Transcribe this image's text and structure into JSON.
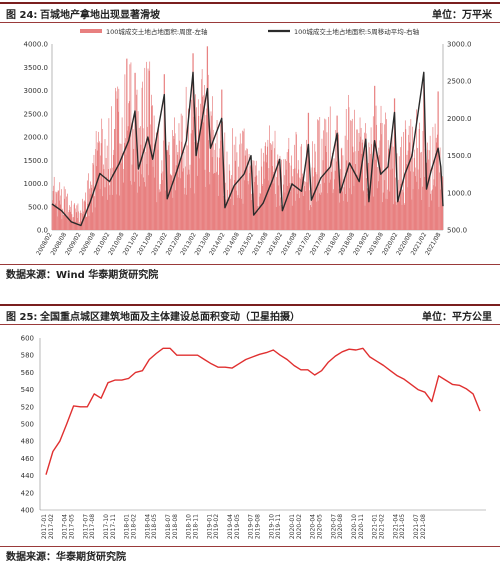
{
  "figure1": {
    "number": "图 24:",
    "title": "百城地产拿地出现显著滑坡",
    "unit": "单位：万平米",
    "source": "数据来源：Wind   华泰期货研究院"
  },
  "figure2": {
    "number": "图 25:",
    "title": "全国重点城区建筑地面及主体建设总面积变动（卫星拍摄）",
    "unit": "单位：平方公里",
    "source": "数据来源：华泰期货研究院"
  },
  "colors": {
    "bars": "#e88080",
    "line1": "#2a2a2a",
    "line2": "#e03030",
    "rule": "#7a1f1f"
  },
  "chart_data": [
    {
      "type": "bar",
      "legend_placement": "top",
      "grid": false,
      "series": [
        {
          "name": "100城成交土地占地面积:周度-左轴",
          "kind": "bar",
          "axis": "left",
          "anchors": [
            [
              "2008-02-01",
              950
            ],
            [
              "2008-06-01",
              650
            ],
            [
              "2008-10-01",
              420
            ],
            [
              "2009-02-01",
              350
            ],
            [
              "2009-06-01",
              900
            ],
            [
              "2009-10-01",
              1700
            ],
            [
              "2010-02-01",
              1600
            ],
            [
              "2010-06-01",
              2100
            ],
            [
              "2010-10-01",
              2300
            ],
            [
              "2011-02-01",
              2100
            ],
            [
              "2011-06-01",
              2500
            ],
            [
              "2011-10-01",
              1500
            ],
            [
              "2012-02-01",
              1100
            ],
            [
              "2012-06-01",
              1600
            ],
            [
              "2012-10-01",
              2000
            ],
            [
              "2013-02-01",
              2100
            ],
            [
              "2013-06-01",
              2300
            ],
            [
              "2013-10-01",
              1800
            ],
            [
              "2014-02-01",
              1400
            ],
            [
              "2014-06-01",
              1400
            ],
            [
              "2014-10-01",
              1500
            ],
            [
              "2015-02-01",
              900
            ],
            [
              "2015-06-01",
              1200
            ],
            [
              "2015-10-01",
              1500
            ],
            [
              "2016-02-01",
              900
            ],
            [
              "2016-06-01",
              1400
            ],
            [
              "2016-10-01",
              1300
            ],
            [
              "2017-02-01",
              1200
            ],
            [
              "2017-06-01",
              1600
            ],
            [
              "2017-10-01",
              1700
            ],
            [
              "2018-02-01",
              1500
            ],
            [
              "2018-06-01",
              1800
            ],
            [
              "2018-10-01",
              1500
            ],
            [
              "2019-02-01",
              1400
            ],
            [
              "2019-06-01",
              1700
            ],
            [
              "2019-10-01",
              1500
            ],
            [
              "2020-02-01",
              1000
            ],
            [
              "2020-06-01",
              1600
            ],
            [
              "2020-10-01",
              1800
            ],
            [
              "2021-02-01",
              1200
            ],
            [
              "2021-06-01",
              1500
            ],
            [
              "2021-08-15",
              1000
            ]
          ],
          "peaks": [
            [
              "2010-12-20",
              3380
            ],
            [
              "2011-12-26",
              3350
            ],
            [
              "2012-12-24",
              3800
            ],
            [
              "2013-06-24",
              3950
            ],
            [
              "2013-12-23",
              3020
            ],
            [
              "2016-12-26",
              2520
            ],
            [
              "2017-12-25",
              2460
            ],
            [
              "2019-04-15",
              3100
            ],
            [
              "2019-12-23",
              2830
            ],
            [
              "2020-12-28",
              3180
            ],
            [
              "2021-06-28",
              2980
            ]
          ]
        },
        {
          "name": "100城成交土地占地面积:5周移动平均-右轴",
          "kind": "line",
          "axis": "right",
          "points": [
            [
              "2008-02-01",
              850
            ],
            [
              "2008-06-01",
              760
            ],
            [
              "2008-10-01",
              610
            ],
            [
              "2009-02-01",
              560
            ],
            [
              "2009-06-01",
              880
            ],
            [
              "2009-10-01",
              1260
            ],
            [
              "2010-02-01",
              1150
            ],
            [
              "2010-06-01",
              1390
            ],
            [
              "2010-10-01",
              1700
            ],
            [
              "2010-12-20",
              2100
            ],
            [
              "2011-02-01",
              1320
            ],
            [
              "2011-06-01",
              1750
            ],
            [
              "2011-08-01",
              1450
            ],
            [
              "2011-12-26",
              2320
            ],
            [
              "2012-02-01",
              920
            ],
            [
              "2012-06-01",
              1290
            ],
            [
              "2012-10-01",
              1700
            ],
            [
              "2012-12-24",
              2620
            ],
            [
              "2013-02-01",
              1500
            ],
            [
              "2013-06-24",
              2400
            ],
            [
              "2013-08-01",
              1600
            ],
            [
              "2013-12-23",
              2000
            ],
            [
              "2014-02-01",
              800
            ],
            [
              "2014-06-01",
              1100
            ],
            [
              "2014-10-01",
              1250
            ],
            [
              "2014-12-29",
              1500
            ],
            [
              "2015-02-01",
              700
            ],
            [
              "2015-06-01",
              860
            ],
            [
              "2015-10-01",
              1180
            ],
            [
              "2015-12-28",
              1450
            ],
            [
              "2016-02-01",
              760
            ],
            [
              "2016-06-01",
              1120
            ],
            [
              "2016-10-01",
              1020
            ],
            [
              "2016-12-26",
              1650
            ],
            [
              "2017-02-01",
              900
            ],
            [
              "2017-06-01",
              1200
            ],
            [
              "2017-10-01",
              1350
            ],
            [
              "2017-12-25",
              1800
            ],
            [
              "2018-02-01",
              1000
            ],
            [
              "2018-06-01",
              1400
            ],
            [
              "2018-10-01",
              1150
            ],
            [
              "2018-12-24",
              1720
            ],
            [
              "2019-02-01",
              880
            ],
            [
              "2019-04-15",
              1700
            ],
            [
              "2019-07-01",
              1250
            ],
            [
              "2019-10-01",
              1350
            ],
            [
              "2019-12-23",
              2080
            ],
            [
              "2020-02-01",
              880
            ],
            [
              "2020-05-01",
              1250
            ],
            [
              "2020-08-01",
              1500
            ],
            [
              "2020-12-28",
              2620
            ],
            [
              "2021-02-01",
              1050
            ],
            [
              "2021-04-01",
              1300
            ],
            [
              "2021-06-28",
              1600
            ],
            [
              "2021-08-01",
              1350
            ],
            [
              "2021-08-29",
              820
            ]
          ]
        }
      ],
      "x_tick_labels": [
        "2008/02",
        "2008/08",
        "2009/02",
        "2009/08",
        "2010/02",
        "2010/08",
        "2011/02",
        "2011/08",
        "2012/02",
        "2012/08",
        "2013/02",
        "2013/08",
        "2014/02",
        "2014/08",
        "2015/02",
        "2015/08",
        "2016/02",
        "2016/08",
        "2017/02",
        "2017/08",
        "2018/02",
        "2018/08",
        "2019/02",
        "2019/08",
        "2020/02",
        "2020/08",
        "2021/02",
        "2021/08"
      ],
      "y_left": {
        "min": 0,
        "max": 4000,
        "ticks": [
          "0.0",
          "500.0",
          "1000.0",
          "1500.0",
          "2000.0",
          "2500.0",
          "3000.0",
          "3500.0",
          "4000.0"
        ]
      },
      "y_right": {
        "min": 500,
        "max": 3000,
        "ticks": [
          "500.0",
          "1000.0",
          "1500.0",
          "2000.0",
          "2500.0",
          "3000.0"
        ]
      }
    },
    {
      "type": "line",
      "grid": false,
      "series": [
        {
          "name": "",
          "values": [
            441,
            468,
            480,
            500,
            521,
            520,
            520,
            535,
            530,
            548,
            551,
            551,
            553,
            560,
            562,
            575,
            582,
            588,
            588,
            580,
            580,
            580,
            580,
            575,
            570,
            566,
            566,
            565,
            570,
            575,
            578,
            581,
            583,
            586,
            580,
            575,
            568,
            563,
            563,
            557,
            562,
            572,
            579,
            584,
            587,
            586,
            588,
            578,
            573,
            568,
            562,
            556,
            552,
            546,
            540,
            537,
            526,
            556,
            551,
            546,
            545,
            541,
            535,
            515
          ]
        }
      ],
      "x": [
        "2017-01",
        "2017-02",
        "2017-03",
        "2017-04",
        "2017-05",
        "2017-06",
        "2017-07",
        "2017-08",
        "2017-09",
        "2017-10",
        "2017-11",
        "2017-12",
        "2018-01",
        "2018-02",
        "2018-03",
        "2018-04",
        "2018-05",
        "2018-06",
        "2018-07",
        "2018-08",
        "2018-09",
        "2018-10",
        "2018-11",
        "2018-12",
        "2019-01",
        "2019-02",
        "2019-03",
        "2019-04",
        "2019-05",
        "2019-06",
        "2019-07",
        "2019-08",
        "2019-09",
        "2019-10",
        "2019-11",
        "2019-12",
        "2020-01",
        "2020-02",
        "2020-03",
        "2020-04",
        "2020-05",
        "2020-06",
        "2020-07",
        "2020-08",
        "2020-09",
        "2020-10",
        "2020-11",
        "2020-12",
        "2021-01",
        "2021-02",
        "2021-03",
        "2021-04",
        "2021-05",
        "2021-06",
        "2021-07",
        "2021-08",
        "2021-09",
        "2021-10",
        "2021-11",
        "2021-12",
        "2022-01",
        "2022-02",
        "2022-03",
        "2022-04"
      ],
      "x_tick_labels": [
        "2017-01",
        "2017-02",
        "2017-04",
        "2017-05",
        "2017-07",
        "2017-08",
        "2017-10",
        "2017-11",
        "2018-01",
        "2018-02",
        "2018-04",
        "2018-05",
        "2018-07",
        "2018-08",
        "2018-10",
        "2018-11",
        "2019-01",
        "2019-02",
        "2019-04",
        "2019-05",
        "2019-07",
        "2019-08",
        "2019-10",
        "2019-11",
        "2020-01",
        "2020-02",
        "2020-04",
        "2020-05",
        "2020-07",
        "2020-08",
        "2020-10",
        "2020-11",
        "2021-01",
        "2021-02",
        "2021-04",
        "2021-05",
        "2021-07",
        "2021-08"
      ],
      "y": {
        "min": 400,
        "max": 600,
        "ticks": [
          "400",
          "420",
          "440",
          "460",
          "480",
          "500",
          "520",
          "540",
          "560",
          "580",
          "600"
        ]
      }
    }
  ]
}
